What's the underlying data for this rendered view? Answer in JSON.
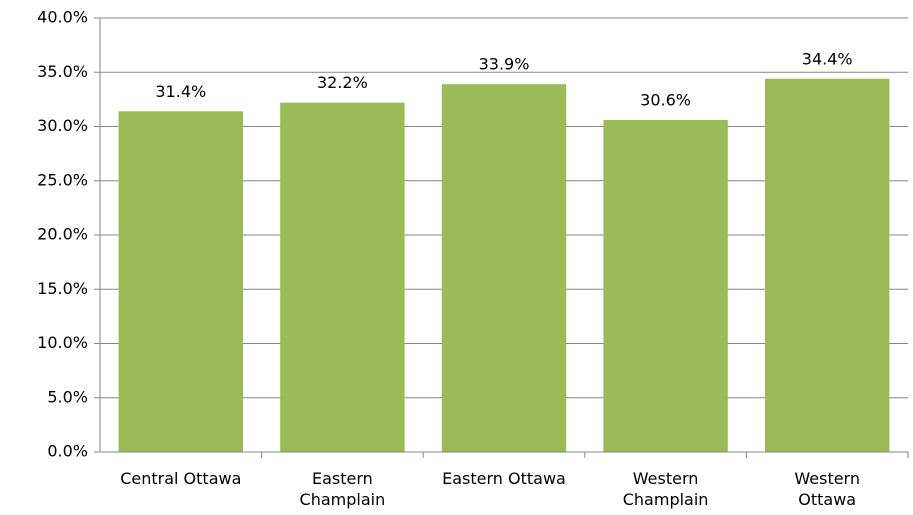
{
  "chart_data": {
    "type": "bar",
    "categories": [
      "Central Ottawa",
      "Eastern Champlain",
      "Eastern Ottawa",
      "Western Champlain",
      "Western Ottawa"
    ],
    "values": [
      31.4,
      32.2,
      33.9,
      30.6,
      34.4
    ],
    "value_labels": [
      "31.4%",
      "32.2%",
      "33.9%",
      "30.6%",
      "34.4%"
    ],
    "color": "#9bbb59",
    "ylim": [
      0,
      40
    ],
    "yticks": [
      {
        "value": 0,
        "label": "0.0%"
      },
      {
        "value": 5,
        "label": "5.0%"
      },
      {
        "value": 10,
        "label": "10.0%"
      },
      {
        "value": 15,
        "label": "15.0%"
      },
      {
        "value": 20,
        "label": "20.0%"
      },
      {
        "value": 25,
        "label": "25.0%"
      },
      {
        "value": 30,
        "label": "30.0%"
      },
      {
        "value": 35,
        "label": "35.0%"
      },
      {
        "value": 40,
        "label": "40.0%"
      }
    ],
    "grid": true
  }
}
